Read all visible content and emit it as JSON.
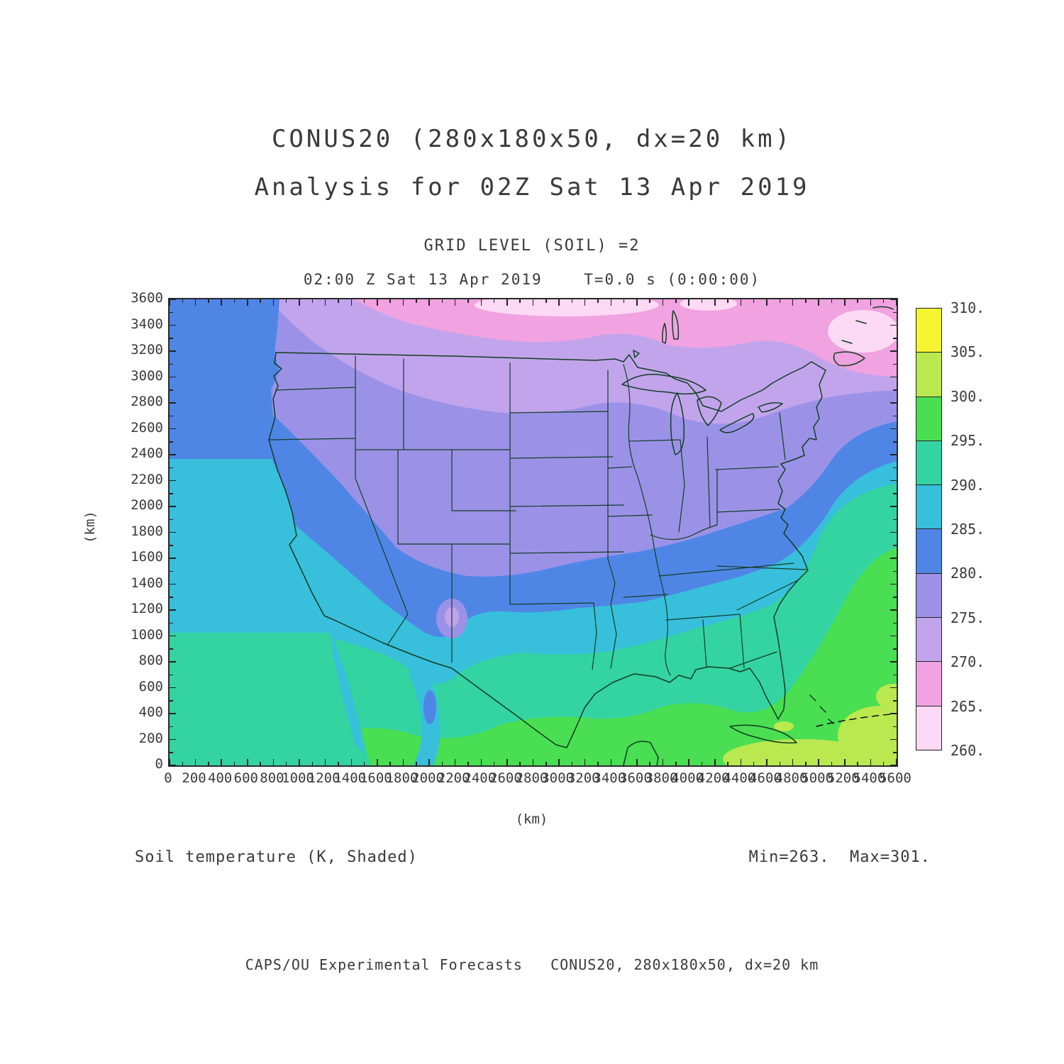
{
  "titles": {
    "line1": "CONUS20 (280x180x50, dx=20 km)",
    "line2": "Analysis for 02Z Sat 13 Apr 2019",
    "grid_level": "GRID LEVEL (SOIL) =2",
    "time_line": "02:00 Z Sat 13 Apr 2019    T=0.0 s (0:00:00)"
  },
  "axes": {
    "x": {
      "label": "(km)",
      "min": 0,
      "max": 5600,
      "tick_step": 200,
      "minor_step": 100,
      "ticks": [
        0,
        200,
        400,
        600,
        800,
        1000,
        1200,
        1400,
        1600,
        1800,
        2000,
        2200,
        2400,
        2600,
        2800,
        3000,
        3200,
        3400,
        3600,
        3800,
        4000,
        4200,
        4400,
        4600,
        4800,
        5000,
        5200,
        5400,
        5600
      ]
    },
    "y": {
      "label": "(km)",
      "min": 0,
      "max": 3600,
      "tick_step": 200,
      "minor_step": 100,
      "ticks": [
        0,
        200,
        400,
        600,
        800,
        1000,
        1200,
        1400,
        1600,
        1800,
        2000,
        2200,
        2400,
        2600,
        2800,
        3000,
        3200,
        3400,
        3600
      ]
    }
  },
  "colorbar": {
    "levels": [
      260,
      265,
      270,
      275,
      280,
      285,
      290,
      295,
      300,
      305,
      310
    ],
    "colors": [
      "#fcd9f4",
      "#f1a2e0",
      "#c2a4ec",
      "#9b92e8",
      "#4f86e6",
      "#38bfdc",
      "#34d3a2",
      "#4ade52",
      "#b9e94e",
      "#f4f431"
    ],
    "labels": [
      "310.",
      "305.",
      "300.",
      "295.",
      "290.",
      "285.",
      "280.",
      "275.",
      "270.",
      "265.",
      "260."
    ]
  },
  "captions": {
    "left": "Soil temperature (K, Shaded)",
    "right": "Min=263.  Max=301."
  },
  "footer": "CAPS/OU Experimental Forecasts   CONUS20, 280x180x50, dx=20 km",
  "chart_data": {
    "type": "filled_contour_map",
    "title": "CONUS20 (280x180x50, dx=20 km)",
    "subtitle": "Analysis for 02Z Sat 13 Apr 2019",
    "field": "Soil temperature",
    "units": "K",
    "shading": "Shaded",
    "grid_level": "GRID LEVEL (SOIL) =2",
    "valid_time": "02:00 Z Sat 13 Apr 2019",
    "forecast_time": "T=0.0 s (0:00:00)",
    "min": 263,
    "max": 301,
    "xlabel": "(km)",
    "ylabel": "(km)",
    "xlim": [
      0,
      5600
    ],
    "ylim": [
      0,
      3600
    ],
    "x_tick_step": 200,
    "y_tick_step": 200,
    "legend_position": "right",
    "contour_levels": [
      260,
      265,
      270,
      275,
      280,
      285,
      290,
      295,
      300,
      305,
      310
    ],
    "palette": [
      {
        "range_K": "260-265",
        "color": "#fcd9f4"
      },
      {
        "range_K": "265-270",
        "color": "#f1a2e0"
      },
      {
        "range_K": "270-275",
        "color": "#c2a4ec"
      },
      {
        "range_K": "275-280",
        "color": "#9b92e8"
      },
      {
        "range_K": "280-285",
        "color": "#4f86e6"
      },
      {
        "range_K": "285-290",
        "color": "#38bfdc"
      },
      {
        "range_K": "290-295",
        "color": "#34d3a2"
      },
      {
        "range_K": "295-300",
        "color": "#4ade52"
      },
      {
        "range_K": "300-305",
        "color": "#b9e94e"
      },
      {
        "range_K": "305-310",
        "color": "#f4f431"
      }
    ],
    "regions": [
      {
        "area": "far northern edge / southern Canada (top of domain)",
        "approx_K": 264
      },
      {
        "area": "Canadian border zone and upper Great Lakes",
        "approx_K": 269
      },
      {
        "area": "northern Plains (MT, ND, MN) and New England",
        "approx_K": 273
      },
      {
        "area": "broad northern US band (WY, SD, NE, IA, Great Lakes states, NE US)",
        "approx_K": 277
      },
      {
        "area": "central transition band (KS, MO, KY, NM highlands)",
        "approx_K": 282
      },
      {
        "area": "southern Plains and mid-South (OK, AR, TN, northern TX)",
        "approx_K": 287
      },
      {
        "area": "Gulf states, Texas, Southeast US",
        "approx_K": 292
      },
      {
        "area": "Gulf of Mexico, Florida, subtropical Atlantic",
        "approx_K": 297
      },
      {
        "area": "far southeast ocean warm patches",
        "approx_K": 301
      },
      {
        "area": "Pacific off the Northwest coast",
        "approx_K": 282
      },
      {
        "area": "Pacific off California / Baja",
        "approx_K": 288
      }
    ]
  }
}
